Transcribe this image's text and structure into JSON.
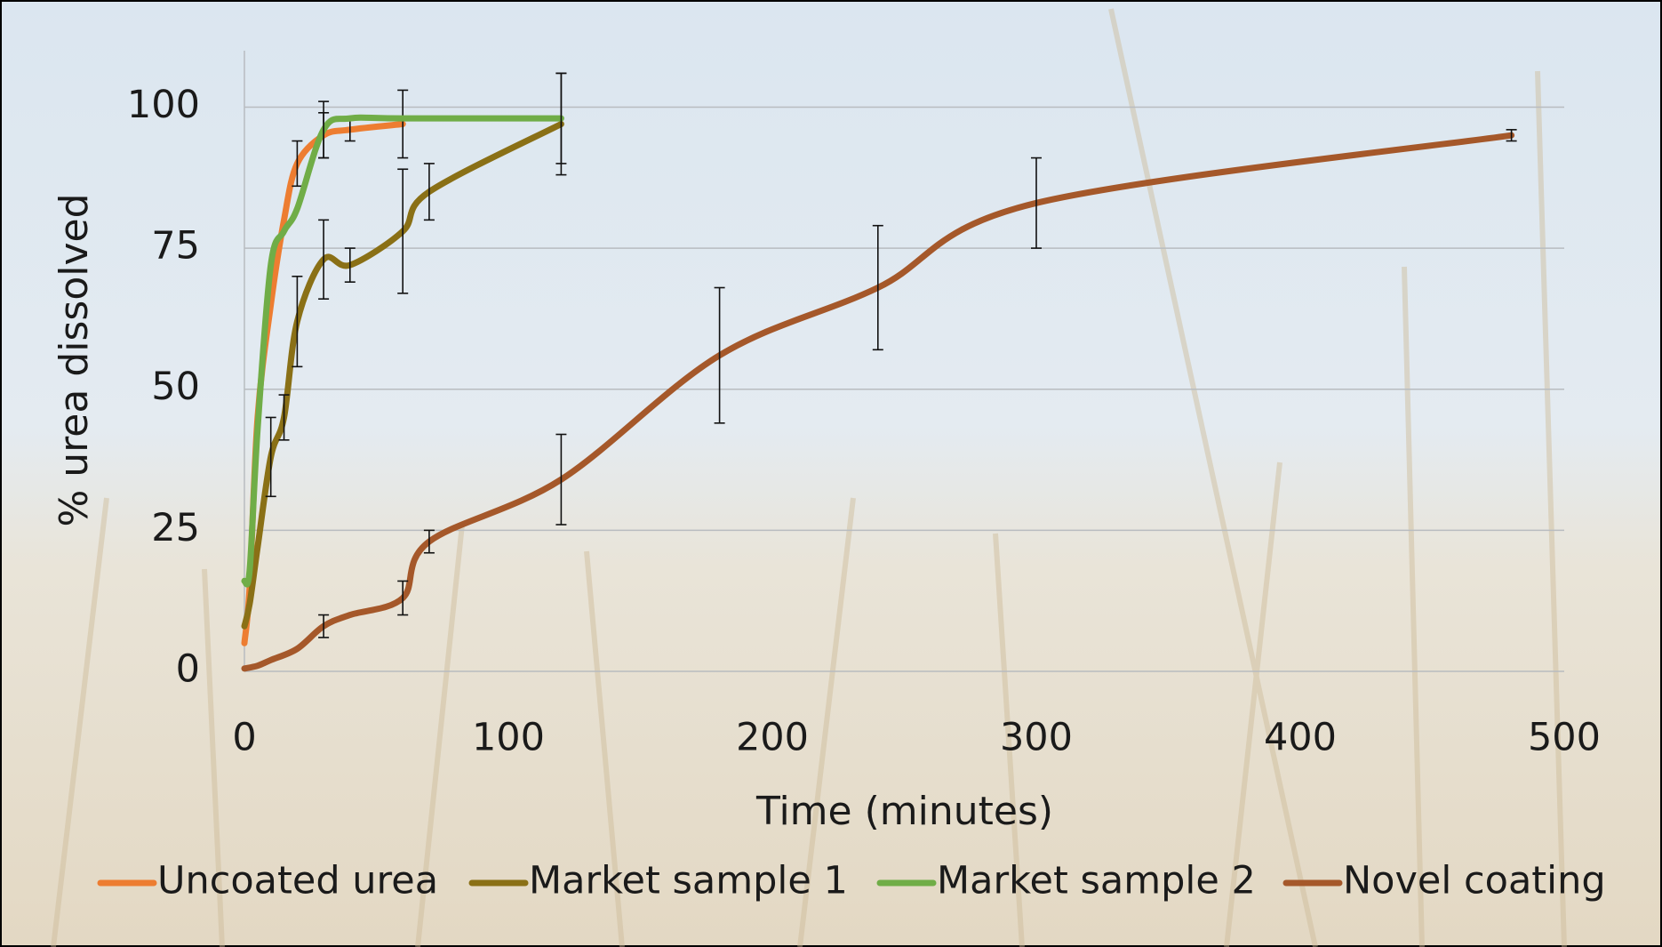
{
  "chart_data": {
    "type": "scatter",
    "x_label": "Time (minutes)",
    "y_label": "% urea dissolved",
    "xlim": [
      0,
      500
    ],
    "ylim": [
      0,
      110
    ],
    "xticks": [
      0,
      100,
      200,
      300,
      400,
      500
    ],
    "yticks": [
      0,
      25,
      50,
      75,
      100
    ],
    "grid": true,
    "legend": "bottom",
    "series": [
      {
        "name": "Uncoated urea",
        "color": "#ed7d31",
        "x": [
          0,
          2,
          5,
          10,
          15,
          20,
          30,
          40,
          60
        ],
        "values": [
          5,
          15,
          45,
          65,
          80,
          90,
          95,
          96,
          97
        ],
        "errors": [
          null,
          null,
          null,
          null,
          null,
          4,
          4,
          2,
          6
        ]
      },
      {
        "name": "Market sample 1",
        "color": "#8a7016",
        "x": [
          0,
          2,
          5,
          10,
          15,
          20,
          30,
          40,
          60,
          70,
          120
        ],
        "values": [
          8,
          12,
          22,
          38,
          45,
          62,
          73,
          72,
          78,
          85,
          97
        ],
        "errors": [
          null,
          null,
          null,
          7,
          4,
          8,
          7,
          3,
          11,
          5,
          9
        ]
      },
      {
        "name": "Market sample 2",
        "color": "#70ad47",
        "x": [
          0,
          2,
          5,
          10,
          15,
          20,
          30,
          40,
          60,
          120
        ],
        "values": [
          16,
          18,
          43,
          72,
          78,
          82,
          96,
          98,
          98,
          98
        ],
        "errors": [
          null,
          null,
          null,
          null,
          null,
          null,
          5,
          null,
          null,
          8
        ]
      },
      {
        "name": "Novel coating",
        "color": "#a5582a",
        "x": [
          0,
          5,
          10,
          20,
          30,
          40,
          60,
          70,
          120,
          180,
          240,
          300,
          480
        ],
        "values": [
          0.5,
          1,
          2,
          4,
          8,
          10,
          13,
          23,
          34,
          56,
          68,
          83,
          95
        ],
        "errors": [
          null,
          null,
          null,
          null,
          2,
          null,
          3,
          2,
          8,
          12,
          11,
          8,
          1
        ]
      }
    ]
  }
}
